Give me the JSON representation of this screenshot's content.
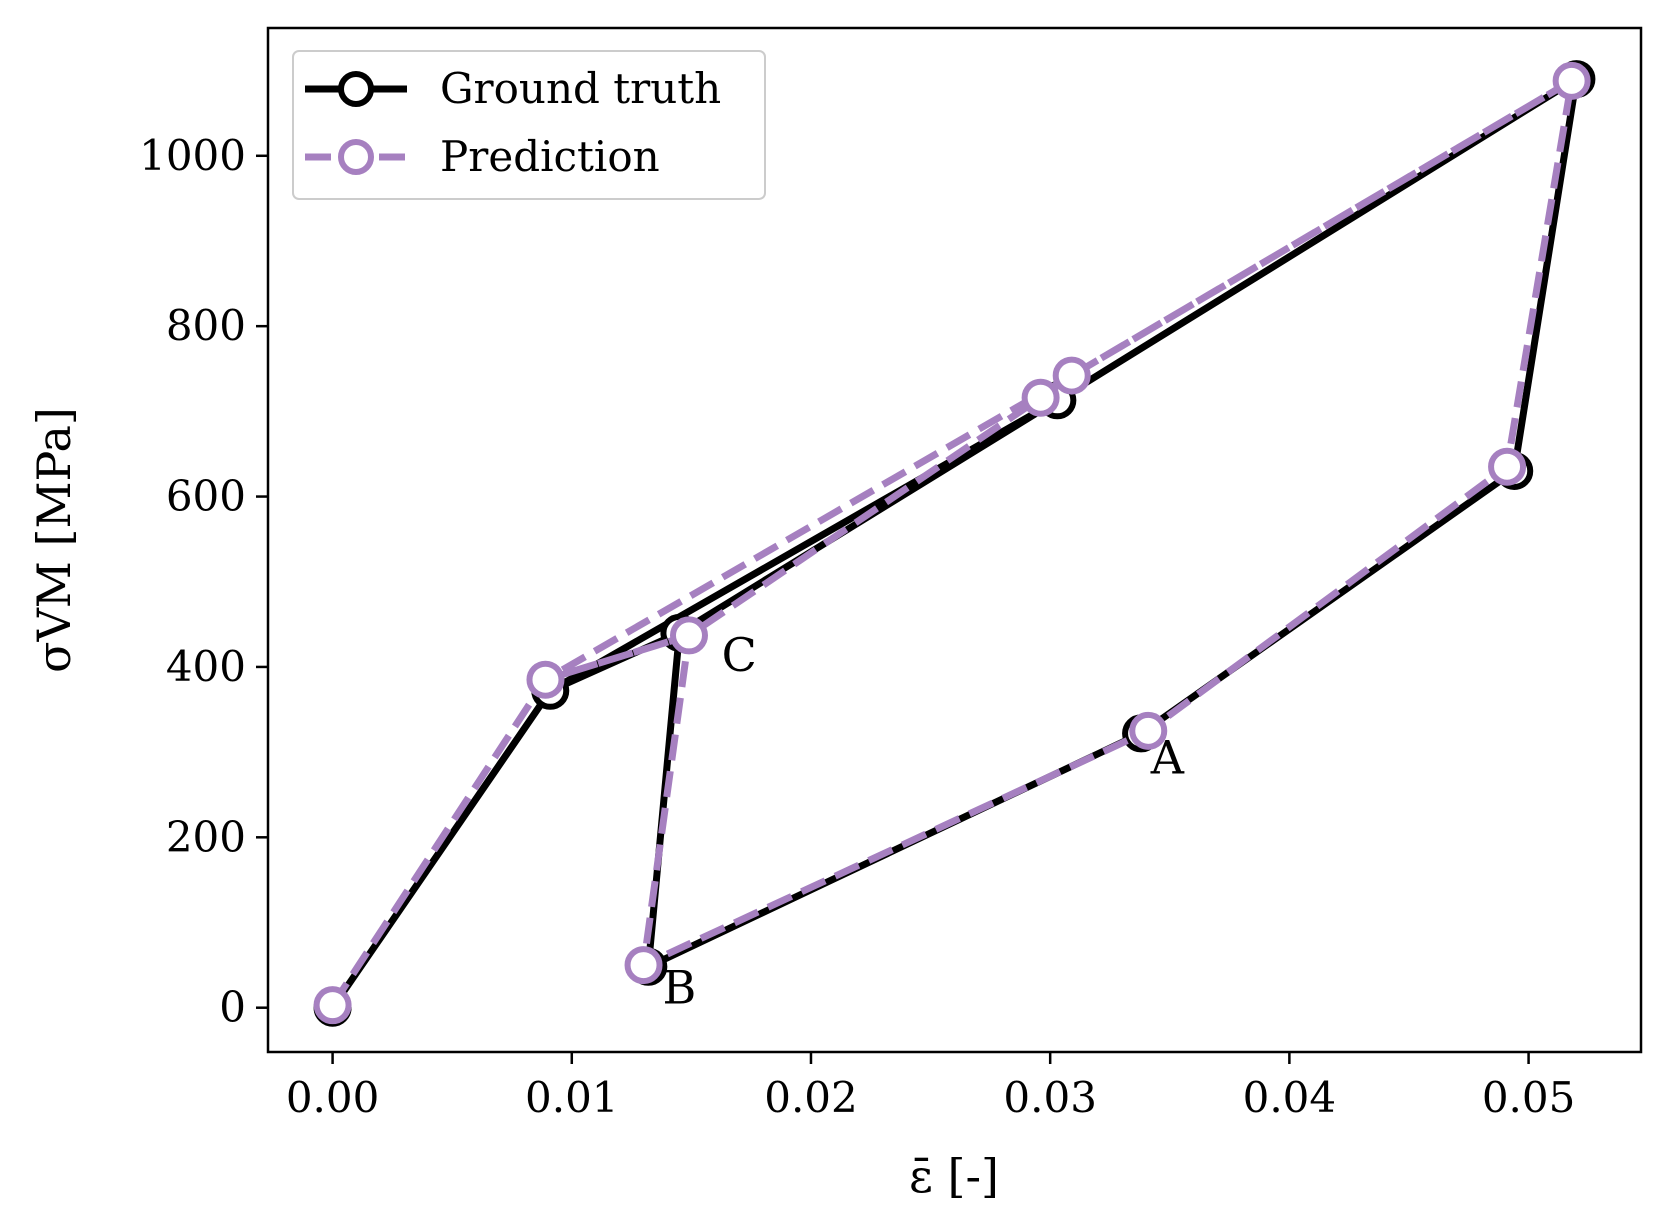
{
  "chart_data": {
    "type": "line",
    "xlabel": "ε̄ [-]",
    "ylabel": "σVM [MPa]",
    "xlim": [
      -0.0027,
      0.0547
    ],
    "ylim": [
      -52,
      1150
    ],
    "xticks": [
      0.0,
      0.01,
      0.02,
      0.03,
      0.04,
      0.05
    ],
    "xtick_labels": [
      "0.00",
      "0.01",
      "0.02",
      "0.03",
      "0.04",
      "0.05"
    ],
    "yticks": [
      0,
      200,
      400,
      600,
      800,
      1000
    ],
    "ytick_labels": [
      "0",
      "200",
      "400",
      "600",
      "800",
      "1000"
    ],
    "grid": false,
    "legend": "top-left",
    "series": [
      {
        "name": "Ground truth",
        "color": "#000000",
        "style": "solid",
        "points": [
          [
            0.0,
            0
          ],
          [
            0.0091,
            372
          ],
          [
            0.0145,
            440
          ],
          [
            0.0303,
            713
          ],
          [
            0.052,
            1090
          ],
          [
            0.0494,
            630
          ],
          [
            0.0338,
            322
          ],
          [
            0.0132,
            48
          ],
          [
            0.0145,
            440
          ],
          [
            0.0091,
            372
          ],
          [
            0.0303,
            713
          ],
          [
            0.052,
            1090
          ]
        ]
      },
      {
        "name": "Prediction",
        "color": "#a680c0",
        "style": "dashed",
        "points": [
          [
            0.0,
            3
          ],
          [
            0.0089,
            385
          ],
          [
            0.0149,
            437
          ],
          [
            0.0296,
            716
          ],
          [
            0.0309,
            742
          ],
          [
            0.0518,
            1088
          ],
          [
            0.0491,
            635
          ],
          [
            0.0341,
            325
          ],
          [
            0.013,
            50
          ],
          [
            0.0149,
            437
          ],
          [
            0.0089,
            385
          ],
          [
            0.0309,
            742
          ],
          [
            0.0518,
            1088
          ]
        ]
      }
    ],
    "annotations": [
      {
        "text": "A",
        "x": 0.0349,
        "y": 275
      },
      {
        "text": "B",
        "x": 0.0145,
        "y": 5
      },
      {
        "text": "C",
        "x": 0.017,
        "y": 395
      }
    ]
  }
}
